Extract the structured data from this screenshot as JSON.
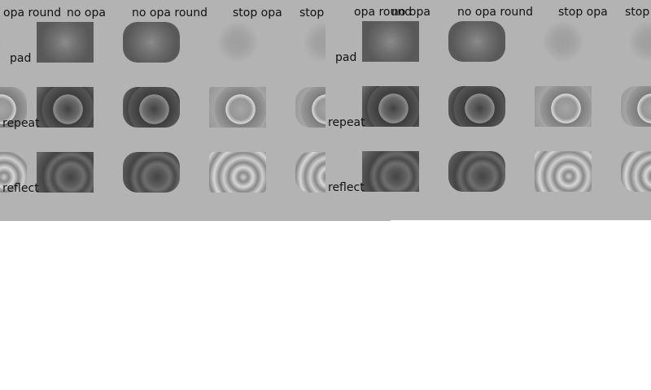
{
  "columns": {
    "c0": "opa round",
    "c1": "no opa",
    "c2": "no opa round",
    "c3": "stop opa",
    "c4": "stop opa round"
  },
  "rows": {
    "pad": "pad",
    "repeat": "repeat",
    "reflect": "reflect"
  },
  "colors": {
    "panel_bg": "#b3b3b3",
    "page_bg": "#ffffff"
  }
}
